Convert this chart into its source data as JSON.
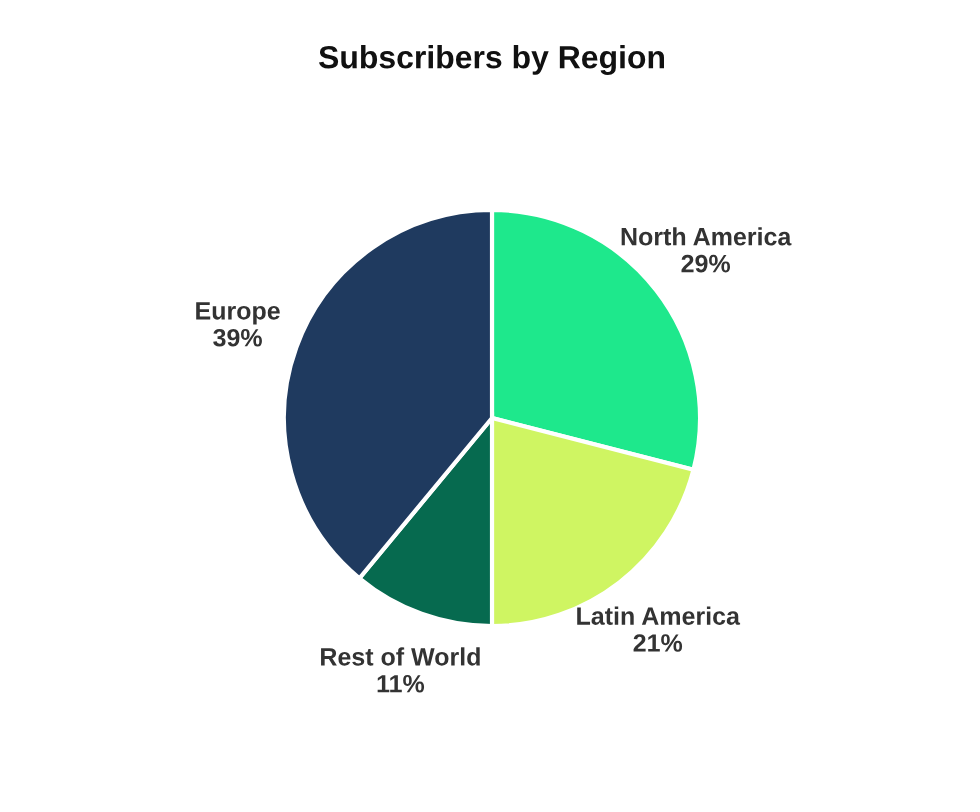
{
  "chart_data": {
    "type": "pie",
    "title": "Subscribers by Region",
    "categories": [
      "North America",
      "Latin America",
      "Rest of World",
      "Europe"
    ],
    "values": [
      29,
      21,
      11,
      39
    ],
    "colors": [
      "#1ee88c",
      "#cff562",
      "#066a4f",
      "#1f3a5f"
    ],
    "value_labels": [
      "29%",
      "21%",
      "11%",
      "39%"
    ],
    "legend": false
  }
}
